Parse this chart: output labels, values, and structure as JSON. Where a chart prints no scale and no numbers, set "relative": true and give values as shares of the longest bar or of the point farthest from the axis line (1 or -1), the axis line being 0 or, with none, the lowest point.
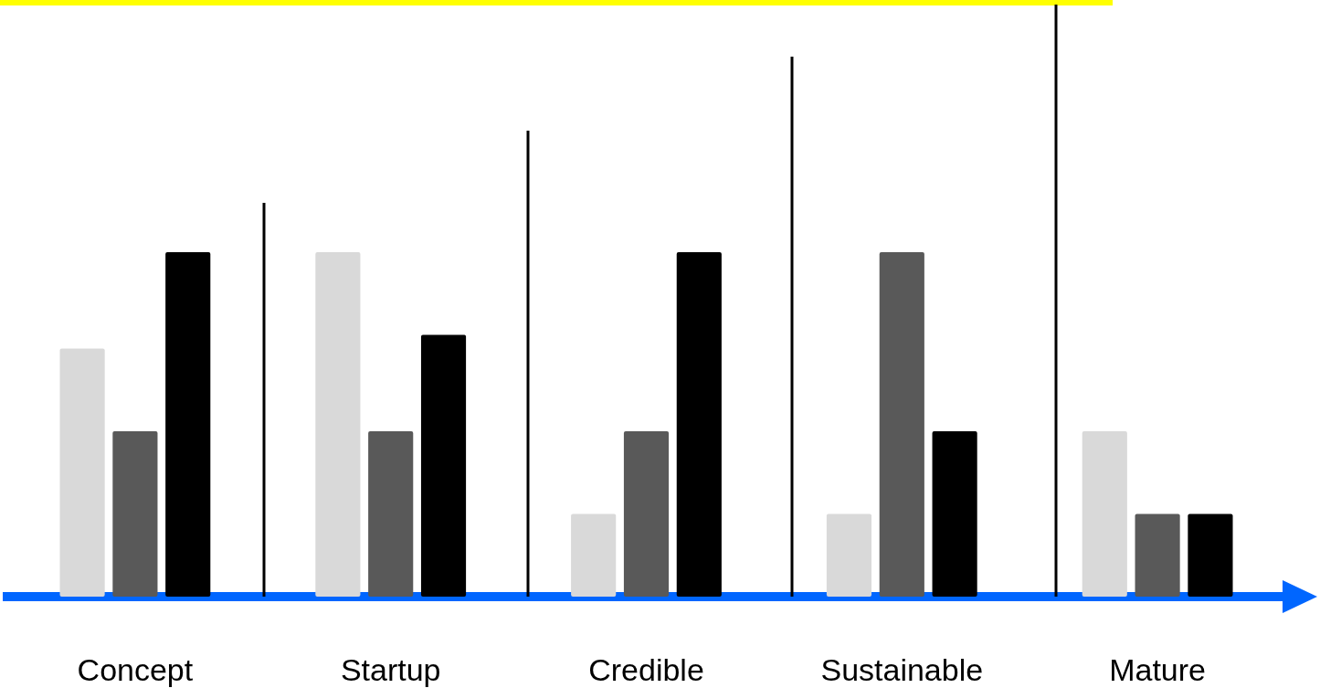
{
  "chart_data": {
    "type": "bar",
    "relative": true,
    "categories": [
      "Concept",
      "Startup",
      "Credible",
      "Sustainable",
      "Mature"
    ],
    "series": [
      {
        "color": "#d9d9d9",
        "values": [
          0.72,
          1,
          0.24,
          0.24,
          0.48
        ]
      },
      {
        "color": "#595959",
        "values": [
          0.48,
          0.48,
          0.48,
          1,
          0.24
        ]
      },
      {
        "color": "#000000",
        "values": [
          1,
          0.76,
          1,
          0.48,
          0.24
        ]
      }
    ],
    "legend": false,
    "grid": false
  }
}
